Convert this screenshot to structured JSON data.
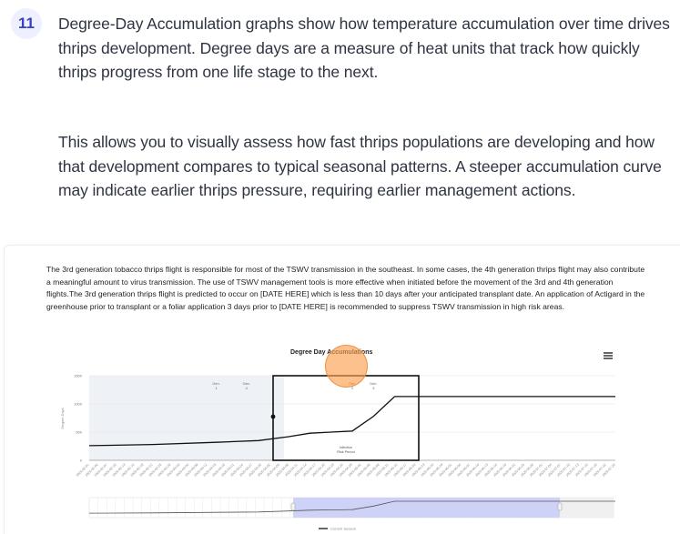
{
  "step": {
    "number": "11"
  },
  "intro": {
    "paragraph1": "Degree-Day Accumulation graphs show how temperature accumulation over time drives thrips development. Degree days are a measure of heat units that track how quickly thrips progress from one life stage to the next.",
    "paragraph2": "This allows you to visually assess how fast thrips populations are developing and how that development compares to typical seasonal patterns. A steeper accumulation curve may indicate earlier thrips pressure, requiring earlier management actions."
  },
  "screenshot": {
    "advisory_text": "The 3rd generation tobacco thrips flight is responsible for most of the TSWV transmission in the southeast. In some cases, the 4th generation thrips flight may also contribute a meaningful amount to virus transmission. The use of TSWV management tools is more effective when initiated before the movement of the 3rd and 4th generation flights.The 3rd generation thrips flight is predicted to occur on [DATE HERE] which is less than 10 days after your anticipated transplant date. An application of Actigard in the greenhouse prior to transplant or a foliar application 3 days prior to [DATE HERE] is recommended to suppress TSWV transmission in high risk areas.",
    "menu_icon": "hamburger-menu-icon"
  },
  "colors": {
    "badge_bg": "#eef0ff",
    "badge_text": "#3b3fc4",
    "shaded_region": "#eef1f5",
    "navigator_selection": "#c9cdf5",
    "series_line": "#111111",
    "touch_indicator": "#f5a35c"
  },
  "chart_data": {
    "type": "line",
    "title": "Degree Day Accumulations",
    "xlabel": "",
    "ylabel": "Degree Days",
    "ylim": [
      0,
      1500
    ],
    "y_ticks": [
      "0",
      "500",
      "1000",
      "1500"
    ],
    "grid": true,
    "legend_position": "bottom-center",
    "x_tick_format": "YYYY-MM-DD (rotated -45°)",
    "x_range": [
      "2025-02-01",
      "2025-07-25"
    ],
    "series": [
      {
        "name": "Current Season",
        "x": [
          "2025-02-01",
          "2025-02-22",
          "2025-03-15",
          "2025-03-29",
          "2025-04-08",
          "2025-04-15",
          "2025-04-22",
          "2025-04-29",
          "2025-05-06",
          "2025-05-13",
          "2025-07-25"
        ],
        "values": [
          260,
          280,
          320,
          350,
          420,
          480,
          500,
          520,
          780,
          1130,
          1130
        ]
      }
    ],
    "annotations": [
      {
        "label_line1": "Gen.",
        "label_line2": "1",
        "x": "2025-03-15"
      },
      {
        "label_line1": "Gen.",
        "label_line2": "4",
        "x": "2025-03-25"
      },
      {
        "label_line1": "Gen.",
        "label_line2": "2",
        "x": "2025-04-29"
      },
      {
        "label_line1": "Gen.",
        "label_line2": "3",
        "x": "2025-05-06"
      },
      {
        "label_line1": "Infection",
        "label_line2": "Risk Period",
        "x": "2025-05-06 to 2025-06-27",
        "type": "box"
      }
    ],
    "current_point": {
      "x": "2025-05-06",
      "y": 780
    },
    "shaded_band": [
      "2025-02-01",
      "2025-05-08"
    ],
    "navigator": {
      "selected_range": [
        "2025-04-10",
        "2025-06-30"
      ]
    }
  }
}
